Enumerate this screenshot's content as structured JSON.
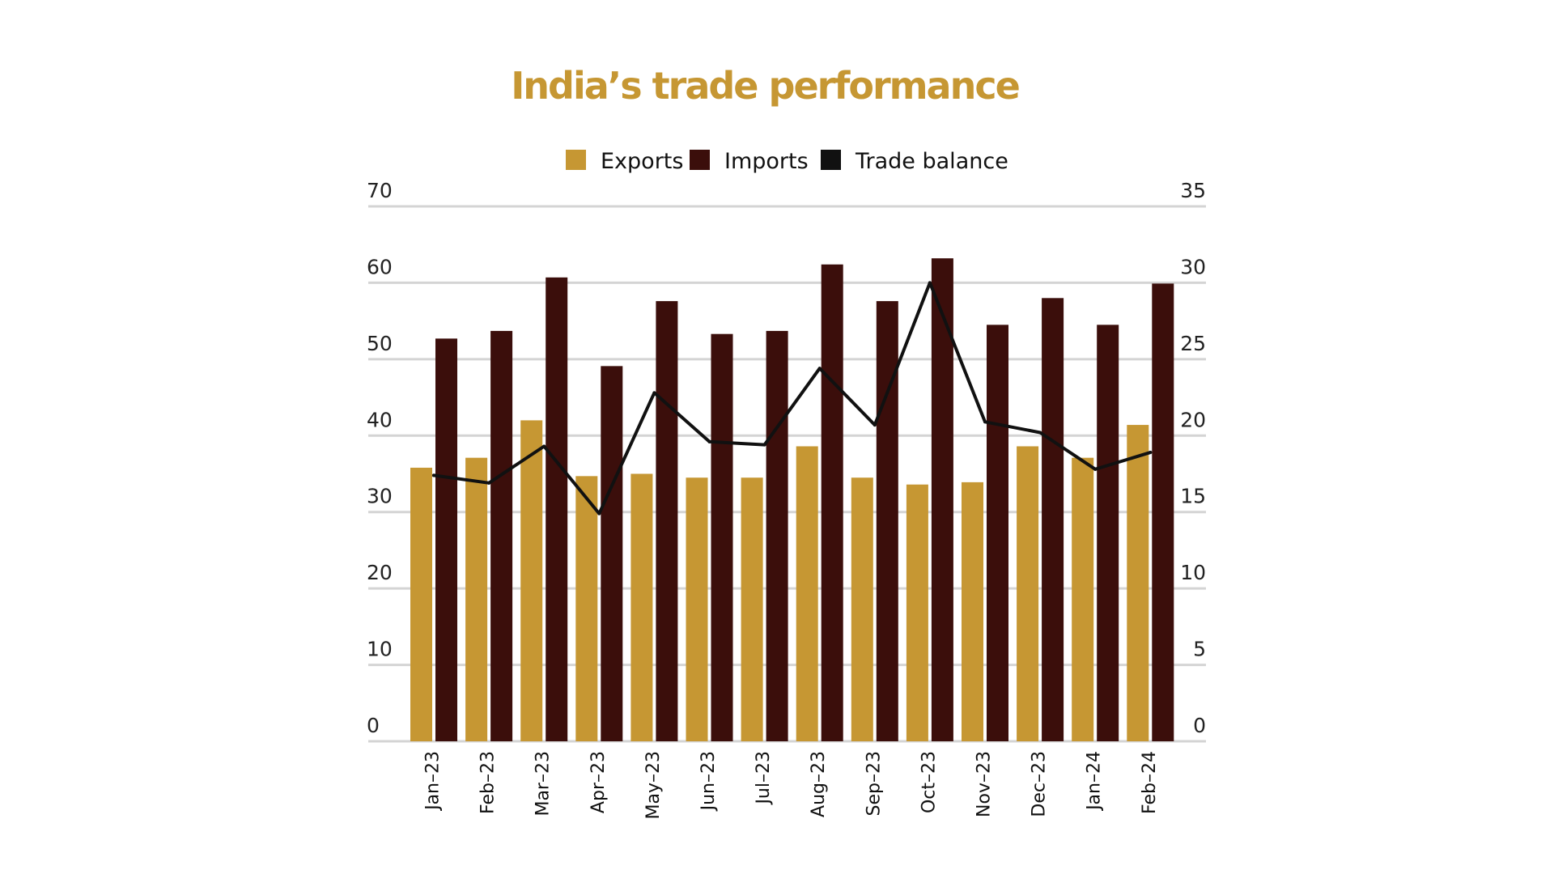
{
  "colors": {
    "exports": "#C69733",
    "imports": "#3B0E0B",
    "trade_balance": "#111111",
    "title": "#C69733"
  },
  "chart_data": {
    "type": "bar",
    "title": "India’s trade performance",
    "categories": [
      "Jan–23",
      "Feb–23",
      "Mar–23",
      "Apr–23",
      "May–23",
      "Jun–23",
      "Jul–23",
      "Aug–23",
      "Sep–23",
      "Oct–23",
      "Nov–23",
      "Dec–23",
      "Jan–24",
      "Feb–24"
    ],
    "series": [
      {
        "name": "Exports",
        "type": "bar",
        "axis": "left",
        "color": "#C69733",
        "values": [
          35.8,
          37.1,
          42.0,
          34.7,
          35.0,
          34.5,
          34.5,
          38.6,
          34.5,
          33.6,
          33.9,
          38.6,
          37.1,
          41.4
        ]
      },
      {
        "name": "Imports",
        "type": "bar",
        "axis": "left",
        "color": "#3B0E0B",
        "values": [
          52.7,
          53.7,
          60.7,
          49.1,
          57.6,
          53.3,
          53.7,
          62.4,
          57.6,
          63.2,
          54.5,
          58.0,
          54.5,
          59.9
        ]
      },
      {
        "name": "Trade balance",
        "type": "line",
        "axis": "right",
        "color": "#111111",
        "values": [
          17.4,
          16.9,
          19.3,
          14.9,
          22.8,
          19.6,
          19.4,
          24.4,
          20.7,
          30.0,
          20.9,
          20.2,
          17.8,
          18.9
        ]
      }
    ],
    "left_axis": {
      "ylim": [
        0,
        70
      ],
      "ticks": [
        "0",
        "10",
        "20",
        "30",
        "40",
        "50",
        "60",
        "70"
      ]
    },
    "right_axis": {
      "ylim": [
        0,
        35
      ],
      "ticks": [
        "0",
        "5",
        "10",
        "15",
        "20",
        "25",
        "30",
        "35"
      ]
    },
    "xlabel": "",
    "ylabel": "",
    "grid": true,
    "legend_position": "top-center"
  }
}
